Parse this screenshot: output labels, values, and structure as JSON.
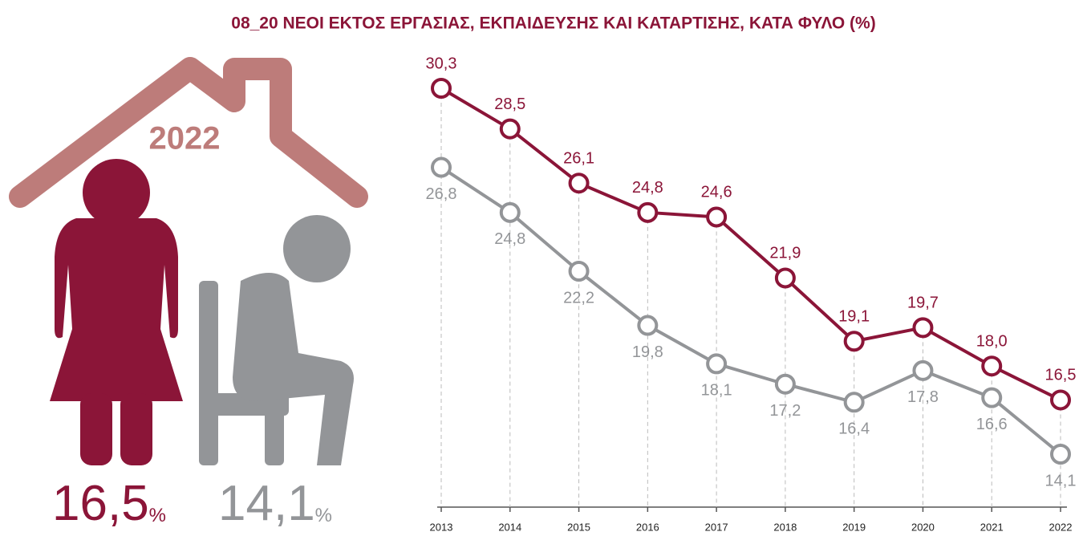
{
  "chart_data": {
    "type": "line",
    "title": "08_20 ΝΕΟΙ ΕΚΤΟΣ ΕΡΓΑΣΙΑΣ, ΕΚΠΑΙΔΕΥΣΗΣ ΚΑΙ ΚΑΤΑΡΤΙΣΗΣ, ΚΑΤΑ ΦΥΛΟ (%)",
    "categories": [
      "2013",
      "2014",
      "2015",
      "2016",
      "2017",
      "2018",
      "2019",
      "2020",
      "2021",
      "2022"
    ],
    "series": [
      {
        "color": "#8b1538",
        "values": [
          30.3,
          28.5,
          26.1,
          24.8,
          24.6,
          21.9,
          19.1,
          19.7,
          18.0,
          16.5
        ],
        "value_labels": [
          "30,3",
          "28,5",
          "26,1",
          "24,8",
          "24,6",
          "21,9",
          "19,1",
          "19,7",
          "18,0",
          "16,5"
        ]
      },
      {
        "color": "#939598",
        "values": [
          26.8,
          24.8,
          22.2,
          19.8,
          18.1,
          17.2,
          16.4,
          17.8,
          16.6,
          14.1
        ],
        "value_labels": [
          "26,8",
          "24,8",
          "22,2",
          "19,8",
          "18,1",
          "17,2",
          "16,4",
          "17,8",
          "16,6",
          "14,1"
        ]
      }
    ]
  },
  "infographic": {
    "year": "2022",
    "female": "16,5",
    "male": "14,1",
    "unit": "%"
  }
}
